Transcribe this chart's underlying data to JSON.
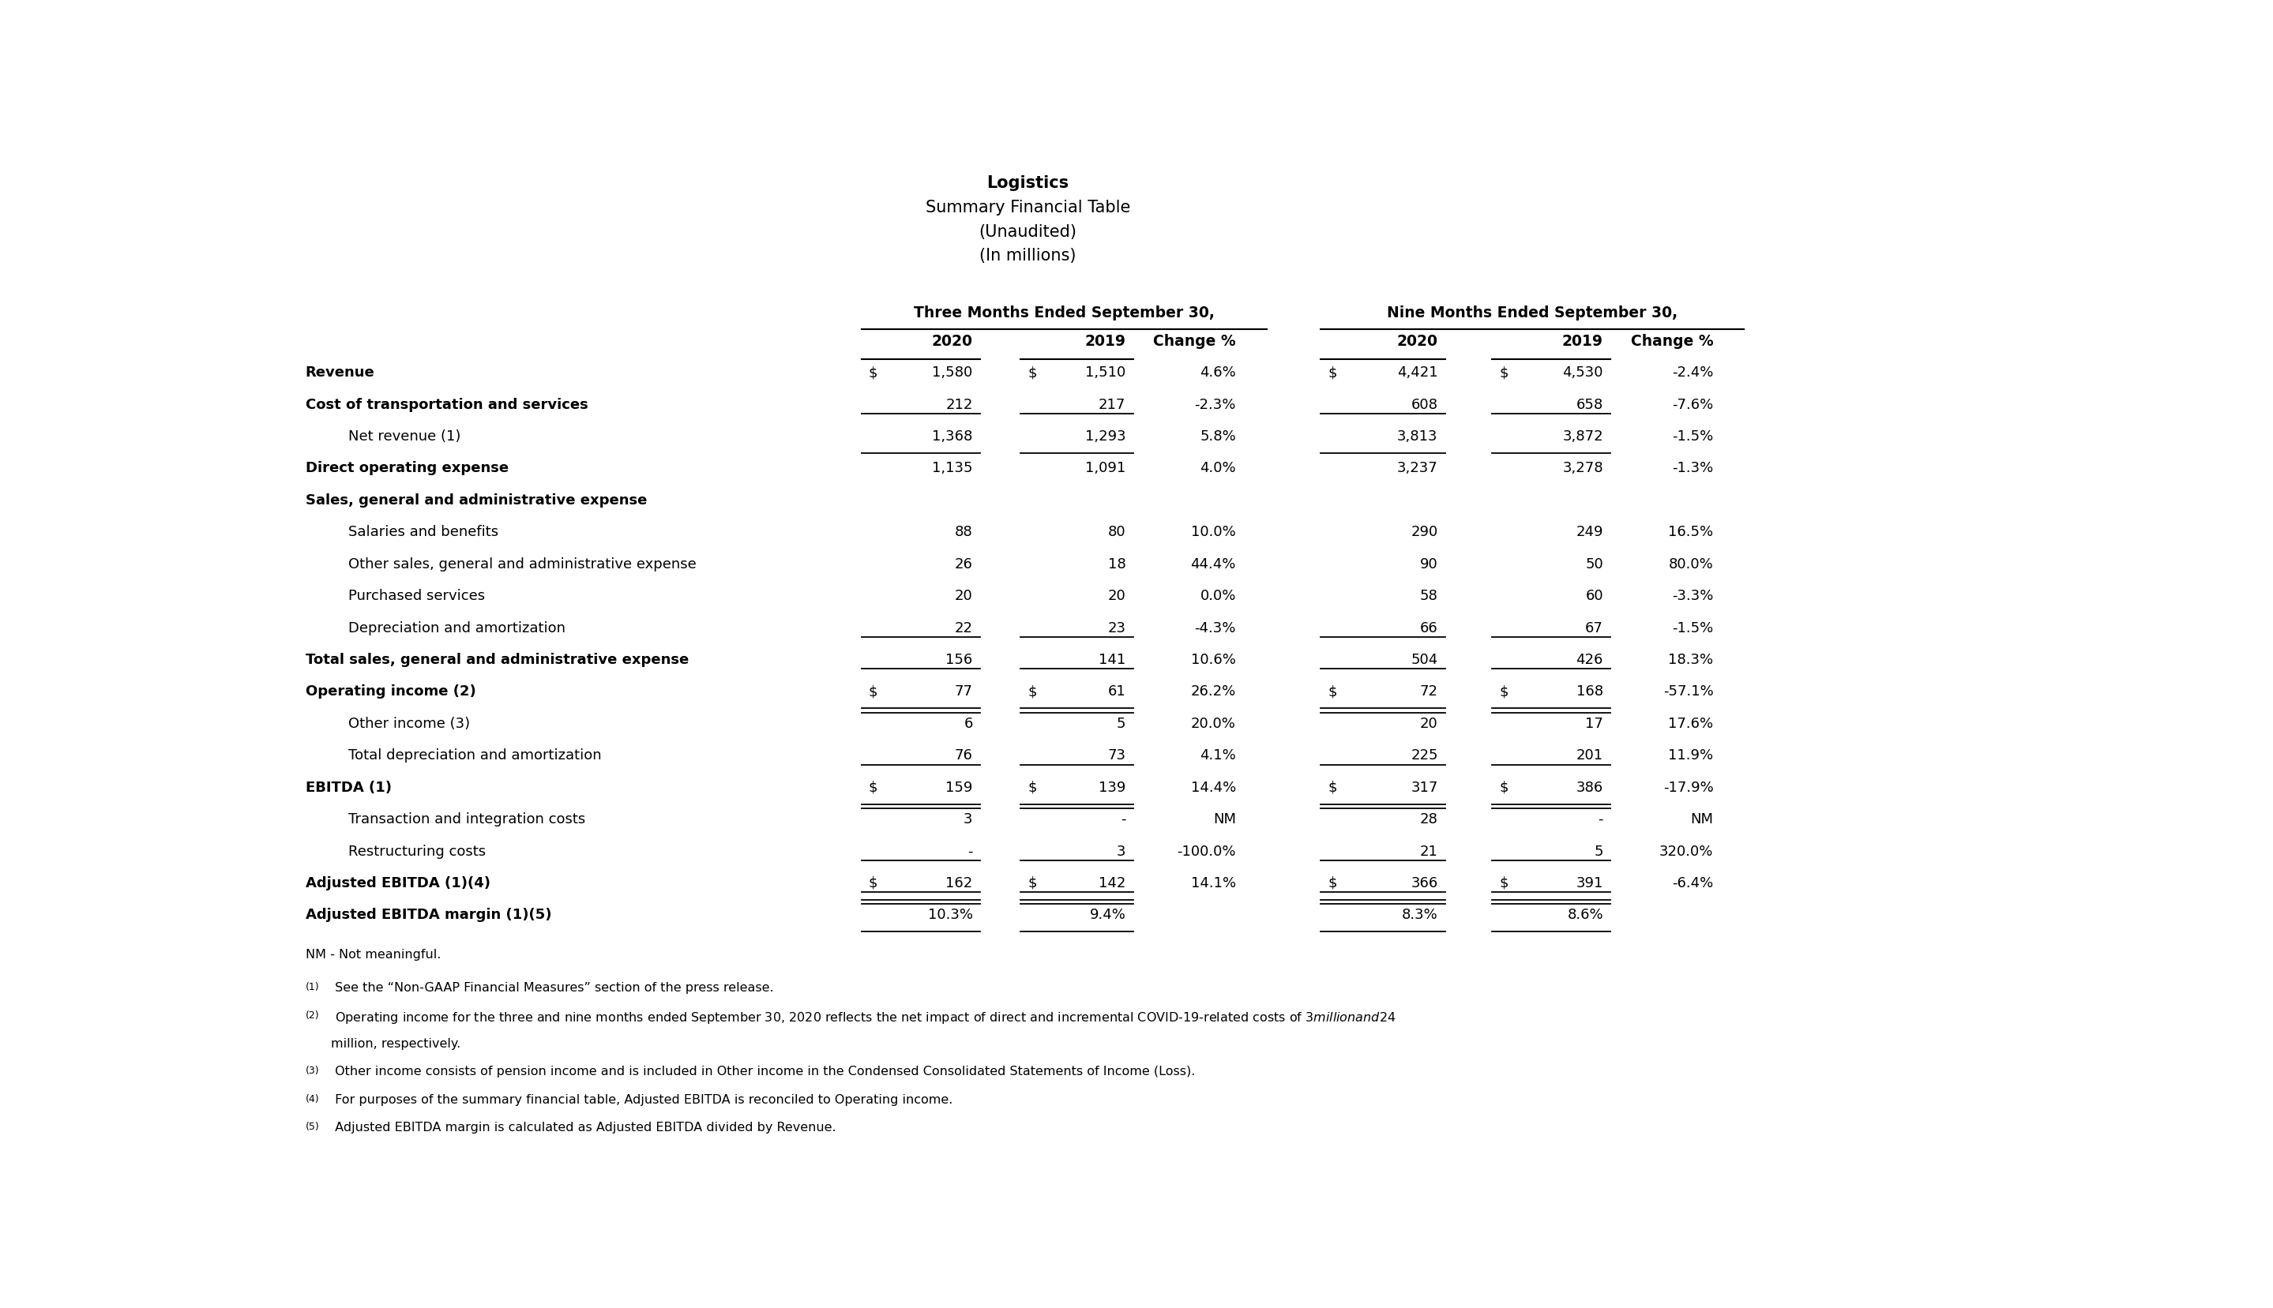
{
  "title_lines": [
    "Logistics",
    "Summary Financial Table",
    "(Unaudited)",
    "(In millions)"
  ],
  "col_headers_top": [
    "Three Months Ended September 30,",
    "Nine Months Ended September 30,"
  ],
  "col_headers_sub": [
    "2020",
    "2019",
    "Change %",
    "2020",
    "2019",
    "Change %"
  ],
  "rows": [
    {
      "label": "Revenue",
      "bold": true,
      "indent": 0,
      "dollar_three_2020": true,
      "dollar_three_2019": true,
      "dollar_nine_2020": true,
      "dollar_nine_2019": true,
      "three_2020": "1,580",
      "three_2019": "1,510",
      "three_chg": "4.6%",
      "nine_2020": "4,421",
      "nine_2019": "4,530",
      "nine_chg": "-2.4%",
      "line_above": false,
      "double_below": false,
      "single_below": false
    },
    {
      "label": "Cost of transportation and services",
      "bold": true,
      "indent": 0,
      "dollar_three_2020": false,
      "dollar_three_2019": false,
      "dollar_nine_2020": false,
      "dollar_nine_2019": false,
      "three_2020": "212",
      "three_2019": "217",
      "three_chg": "-2.3%",
      "nine_2020": "608",
      "nine_2019": "658",
      "nine_chg": "-7.6%",
      "line_above": false,
      "double_below": false,
      "single_below": false
    },
    {
      "label": "Net revenue (1)",
      "bold": false,
      "indent": 1,
      "dollar_three_2020": false,
      "dollar_three_2019": false,
      "dollar_nine_2020": false,
      "dollar_nine_2019": false,
      "three_2020": "1,368",
      "three_2019": "1,293",
      "three_chg": "5.8%",
      "nine_2020": "3,813",
      "nine_2019": "3,872",
      "nine_chg": "-1.5%",
      "line_above": true,
      "double_below": false,
      "single_below": true
    },
    {
      "label": "Direct operating expense",
      "bold": true,
      "indent": 0,
      "dollar_three_2020": false,
      "dollar_three_2019": false,
      "dollar_nine_2020": false,
      "dollar_nine_2019": false,
      "three_2020": "1,135",
      "three_2019": "1,091",
      "three_chg": "4.0%",
      "nine_2020": "3,237",
      "nine_2019": "3,278",
      "nine_chg": "-1.3%",
      "line_above": false,
      "double_below": false,
      "single_below": false
    },
    {
      "label": "Sales, general and administrative expense",
      "bold": true,
      "indent": 0,
      "dollar_three_2020": false,
      "dollar_three_2019": false,
      "dollar_nine_2020": false,
      "dollar_nine_2019": false,
      "three_2020": "",
      "three_2019": "",
      "three_chg": "",
      "nine_2020": "",
      "nine_2019": "",
      "nine_chg": "",
      "line_above": false,
      "double_below": false,
      "single_below": false
    },
    {
      "label": "Salaries and benefits",
      "bold": false,
      "indent": 2,
      "dollar_three_2020": false,
      "dollar_three_2019": false,
      "dollar_nine_2020": false,
      "dollar_nine_2019": false,
      "three_2020": "88",
      "three_2019": "80",
      "three_chg": "10.0%",
      "nine_2020": "290",
      "nine_2019": "249",
      "nine_chg": "16.5%",
      "line_above": false,
      "double_below": false,
      "single_below": false
    },
    {
      "label": "Other sales, general and administrative expense",
      "bold": false,
      "indent": 2,
      "dollar_three_2020": false,
      "dollar_three_2019": false,
      "dollar_nine_2020": false,
      "dollar_nine_2019": false,
      "three_2020": "26",
      "three_2019": "18",
      "three_chg": "44.4%",
      "nine_2020": "90",
      "nine_2019": "50",
      "nine_chg": "80.0%",
      "line_above": false,
      "double_below": false,
      "single_below": false
    },
    {
      "label": "Purchased services",
      "bold": false,
      "indent": 2,
      "dollar_three_2020": false,
      "dollar_three_2019": false,
      "dollar_nine_2020": false,
      "dollar_nine_2019": false,
      "three_2020": "20",
      "three_2019": "20",
      "three_chg": "0.0%",
      "nine_2020": "58",
      "nine_2019": "60",
      "nine_chg": "-3.3%",
      "line_above": false,
      "double_below": false,
      "single_below": false
    },
    {
      "label": "Depreciation and amortization",
      "bold": false,
      "indent": 2,
      "dollar_three_2020": false,
      "dollar_three_2019": false,
      "dollar_nine_2020": false,
      "dollar_nine_2019": false,
      "three_2020": "22",
      "three_2019": "23",
      "three_chg": "-4.3%",
      "nine_2020": "66",
      "nine_2019": "67",
      "nine_chg": "-1.5%",
      "line_above": false,
      "double_below": false,
      "single_below": false
    },
    {
      "label": "Total sales, general and administrative expense",
      "bold": true,
      "indent": 0,
      "dollar_three_2020": false,
      "dollar_three_2019": false,
      "dollar_nine_2020": false,
      "dollar_nine_2019": false,
      "three_2020": "156",
      "three_2019": "141",
      "three_chg": "10.6%",
      "nine_2020": "504",
      "nine_2019": "426",
      "nine_chg": "18.3%",
      "line_above": true,
      "double_below": false,
      "single_below": false
    },
    {
      "label": "Operating income (2)",
      "bold": true,
      "indent": 0,
      "dollar_three_2020": true,
      "dollar_three_2019": true,
      "dollar_nine_2020": true,
      "dollar_nine_2019": true,
      "three_2020": "77",
      "three_2019": "61",
      "three_chg": "26.2%",
      "nine_2020": "72",
      "nine_2019": "168",
      "nine_chg": "-57.1%",
      "line_above": true,
      "double_below": true,
      "single_below": false
    },
    {
      "label": "Other income (3)",
      "bold": false,
      "indent": 2,
      "dollar_three_2020": false,
      "dollar_three_2019": false,
      "dollar_nine_2020": false,
      "dollar_nine_2019": false,
      "three_2020": "6",
      "three_2019": "5",
      "three_chg": "20.0%",
      "nine_2020": "20",
      "nine_2019": "17",
      "nine_chg": "17.6%",
      "line_above": false,
      "double_below": false,
      "single_below": false
    },
    {
      "label": "Total depreciation and amortization",
      "bold": false,
      "indent": 2,
      "dollar_three_2020": false,
      "dollar_three_2019": false,
      "dollar_nine_2020": false,
      "dollar_nine_2019": false,
      "three_2020": "76",
      "three_2019": "73",
      "three_chg": "4.1%",
      "nine_2020": "225",
      "nine_2019": "201",
      "nine_chg": "11.9%",
      "line_above": false,
      "double_below": false,
      "single_below": false
    },
    {
      "label": "EBITDA (1)",
      "bold": true,
      "indent": 0,
      "dollar_three_2020": true,
      "dollar_three_2019": true,
      "dollar_nine_2020": true,
      "dollar_nine_2019": true,
      "three_2020": "159",
      "three_2019": "139",
      "three_chg": "14.4%",
      "nine_2020": "317",
      "nine_2019": "386",
      "nine_chg": "-17.9%",
      "line_above": true,
      "double_below": true,
      "single_below": false
    },
    {
      "label": "Transaction and integration costs",
      "bold": false,
      "indent": 2,
      "dollar_three_2020": false,
      "dollar_three_2019": false,
      "dollar_nine_2020": false,
      "dollar_nine_2019": false,
      "three_2020": "3",
      "three_2019": "-",
      "three_chg": "NM",
      "nine_2020": "28",
      "nine_2019": "-",
      "nine_chg": "NM",
      "line_above": false,
      "double_below": false,
      "single_below": false
    },
    {
      "label": "Restructuring costs",
      "bold": false,
      "indent": 2,
      "dollar_three_2020": false,
      "dollar_three_2019": false,
      "dollar_nine_2020": false,
      "dollar_nine_2019": false,
      "three_2020": "-",
      "three_2019": "3",
      "three_chg": "-100.0%",
      "nine_2020": "21",
      "nine_2019": "5",
      "nine_chg": "320.0%",
      "line_above": false,
      "double_below": false,
      "single_below": false
    },
    {
      "label": "Adjusted EBITDA (1)(4)",
      "bold": true,
      "indent": 0,
      "dollar_three_2020": true,
      "dollar_three_2019": true,
      "dollar_nine_2020": true,
      "dollar_nine_2019": true,
      "three_2020": "162",
      "three_2019": "142",
      "three_chg": "14.1%",
      "nine_2020": "366",
      "nine_2019": "391",
      "nine_chg": "-6.4%",
      "line_above": true,
      "double_below": true,
      "single_below": false
    },
    {
      "label": "Adjusted EBITDA margin (1)(5)",
      "bold": true,
      "indent": 0,
      "dollar_three_2020": false,
      "dollar_three_2019": false,
      "dollar_nine_2020": false,
      "dollar_nine_2019": false,
      "three_2020": "10.3%",
      "three_2019": "9.4%",
      "three_chg": "",
      "nine_2020": "8.3%",
      "nine_2019": "8.6%",
      "nine_chg": "",
      "line_above": true,
      "double_below": false,
      "single_below": true
    }
  ],
  "footnote_nm": "NM - Not meaningful.",
  "footnotes": [
    {
      "super": "(1)",
      "text": " See the “Non-GAAP Financial Measures” section of the press release."
    },
    {
      "super": "(2)",
      "text": " Operating income for the three and nine months ended September 30, 2020 reflects the net impact of direct and incremental COVID-19-related costs of $3 million and $24\nmillion, respectively."
    },
    {
      "super": "(3)",
      "text": " Other income consists of pension income and is included in Other income in the Condensed Consolidated Statements of Income (Loss)."
    },
    {
      "super": "(4)",
      "text": " For purposes of the summary financial table, Adjusted EBITDA is reconciled to Operating income."
    },
    {
      "super": "(5)",
      "text": " Adjusted EBITDA margin is calculated as Adjusted EBITDA divided by Revenue."
    }
  ]
}
